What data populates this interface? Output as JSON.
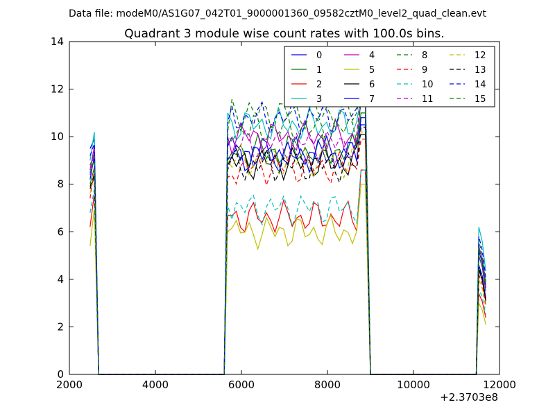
{
  "suptitle": "Data file: modeM0/AS1G07_042T01_9000001360_09582cztM0_level2_quad_clean.evt",
  "chart_data": {
    "type": "line",
    "title": "Quadrant 3 module wise count rates with 100.0s bins.",
    "xlabel": "",
    "ylabel": "",
    "x_offset_label": "+2.3703e8",
    "xlim": [
      2000,
      12000
    ],
    "ylim": [
      0,
      14
    ],
    "xticks": [
      2000,
      4000,
      6000,
      8000,
      10000,
      12000
    ],
    "yticks": [
      0,
      2,
      4,
      6,
      8,
      10,
      12,
      14
    ],
    "grid": false,
    "legend_position": "top-right",
    "legend_columns": 4,
    "segments": [
      {
        "x_start": 2480,
        "x_end": 2680,
        "step": 100
      },
      {
        "x_start": 5680,
        "x_end": 8880,
        "step": 100
      },
      {
        "x_start": 11480,
        "x_end": 11680,
        "step": 100
      }
    ],
    "series": [
      {
        "name": "0",
        "color": "#0000ff",
        "dash": "solid",
        "level": 9.3,
        "edge_values": [
          9.5,
          9.9,
          9.6,
          4.6
        ]
      },
      {
        "name": "1",
        "color": "#008000",
        "dash": "solid",
        "level": 9.4,
        "edge_values": [
          8.0,
          8.7,
          9.0,
          5.0
        ]
      },
      {
        "name": "2",
        "color": "#ff0000",
        "dash": "solid",
        "level": 6.6,
        "edge_values": [
          6.2,
          7.6,
          6.7,
          3.4
        ]
      },
      {
        "name": "3",
        "color": "#00bfbf",
        "dash": "solid",
        "level": 10.5,
        "edge_values": [
          9.0,
          10.2,
          11.0,
          6.2
        ]
      },
      {
        "name": "4",
        "color": "#bf00bf",
        "dash": "solid",
        "level": 10.0,
        "edge_values": [
          8.6,
          9.6,
          10.0,
          5.4
        ]
      },
      {
        "name": "5",
        "color": "#bfbf00",
        "dash": "solid",
        "level": 6.0,
        "edge_values": [
          5.4,
          7.0,
          6.0,
          3.0
        ]
      },
      {
        "name": "6",
        "color": "#000000",
        "dash": "solid",
        "level": 8.9,
        "edge_values": [
          7.8,
          8.3,
          8.8,
          4.4
        ]
      },
      {
        "name": "7",
        "color": "#0000ff",
        "dash": "solid",
        "level": 9.2,
        "edge_values": [
          8.2,
          9.2,
          9.1,
          5.2
        ]
      },
      {
        "name": "8",
        "color": "#008000",
        "dash": "dashed",
        "level": 11.0,
        "edge_values": [
          8.8,
          9.3,
          10.2,
          5.6
        ]
      },
      {
        "name": "9",
        "color": "#ff0000",
        "dash": "dashed",
        "level": 8.7,
        "edge_values": [
          7.4,
          8.6,
          8.3,
          4.2
        ]
      },
      {
        "name": "10",
        "color": "#00bfbf",
        "dash": "dashed",
        "level": 7.0,
        "edge_values": [
          6.8,
          7.8,
          7.1,
          3.6
        ]
      },
      {
        "name": "11",
        "color": "#bf00bf",
        "dash": "dashed",
        "level": 9.7,
        "edge_values": [
          8.4,
          9.4,
          9.7,
          5.0
        ]
      },
      {
        "name": "12",
        "color": "#bfbf00",
        "dash": "dashed",
        "level": 9.0,
        "edge_values": [
          7.6,
          8.5,
          9.0,
          4.0
        ]
      },
      {
        "name": "13",
        "color": "#000000",
        "dash": "dashed",
        "level": 8.8,
        "edge_values": [
          7.9,
          8.4,
          8.6,
          4.5
        ]
      },
      {
        "name": "14",
        "color": "#0000ff",
        "dash": "dashed",
        "level": 10.8,
        "edge_values": [
          9.2,
          9.7,
          10.6,
          5.8
        ]
      },
      {
        "name": "15",
        "color": "#008000",
        "dash": "dashed",
        "level": 10.3,
        "edge_values": [
          8.5,
          9.0,
          10.1,
          5.3
        ]
      }
    ]
  }
}
